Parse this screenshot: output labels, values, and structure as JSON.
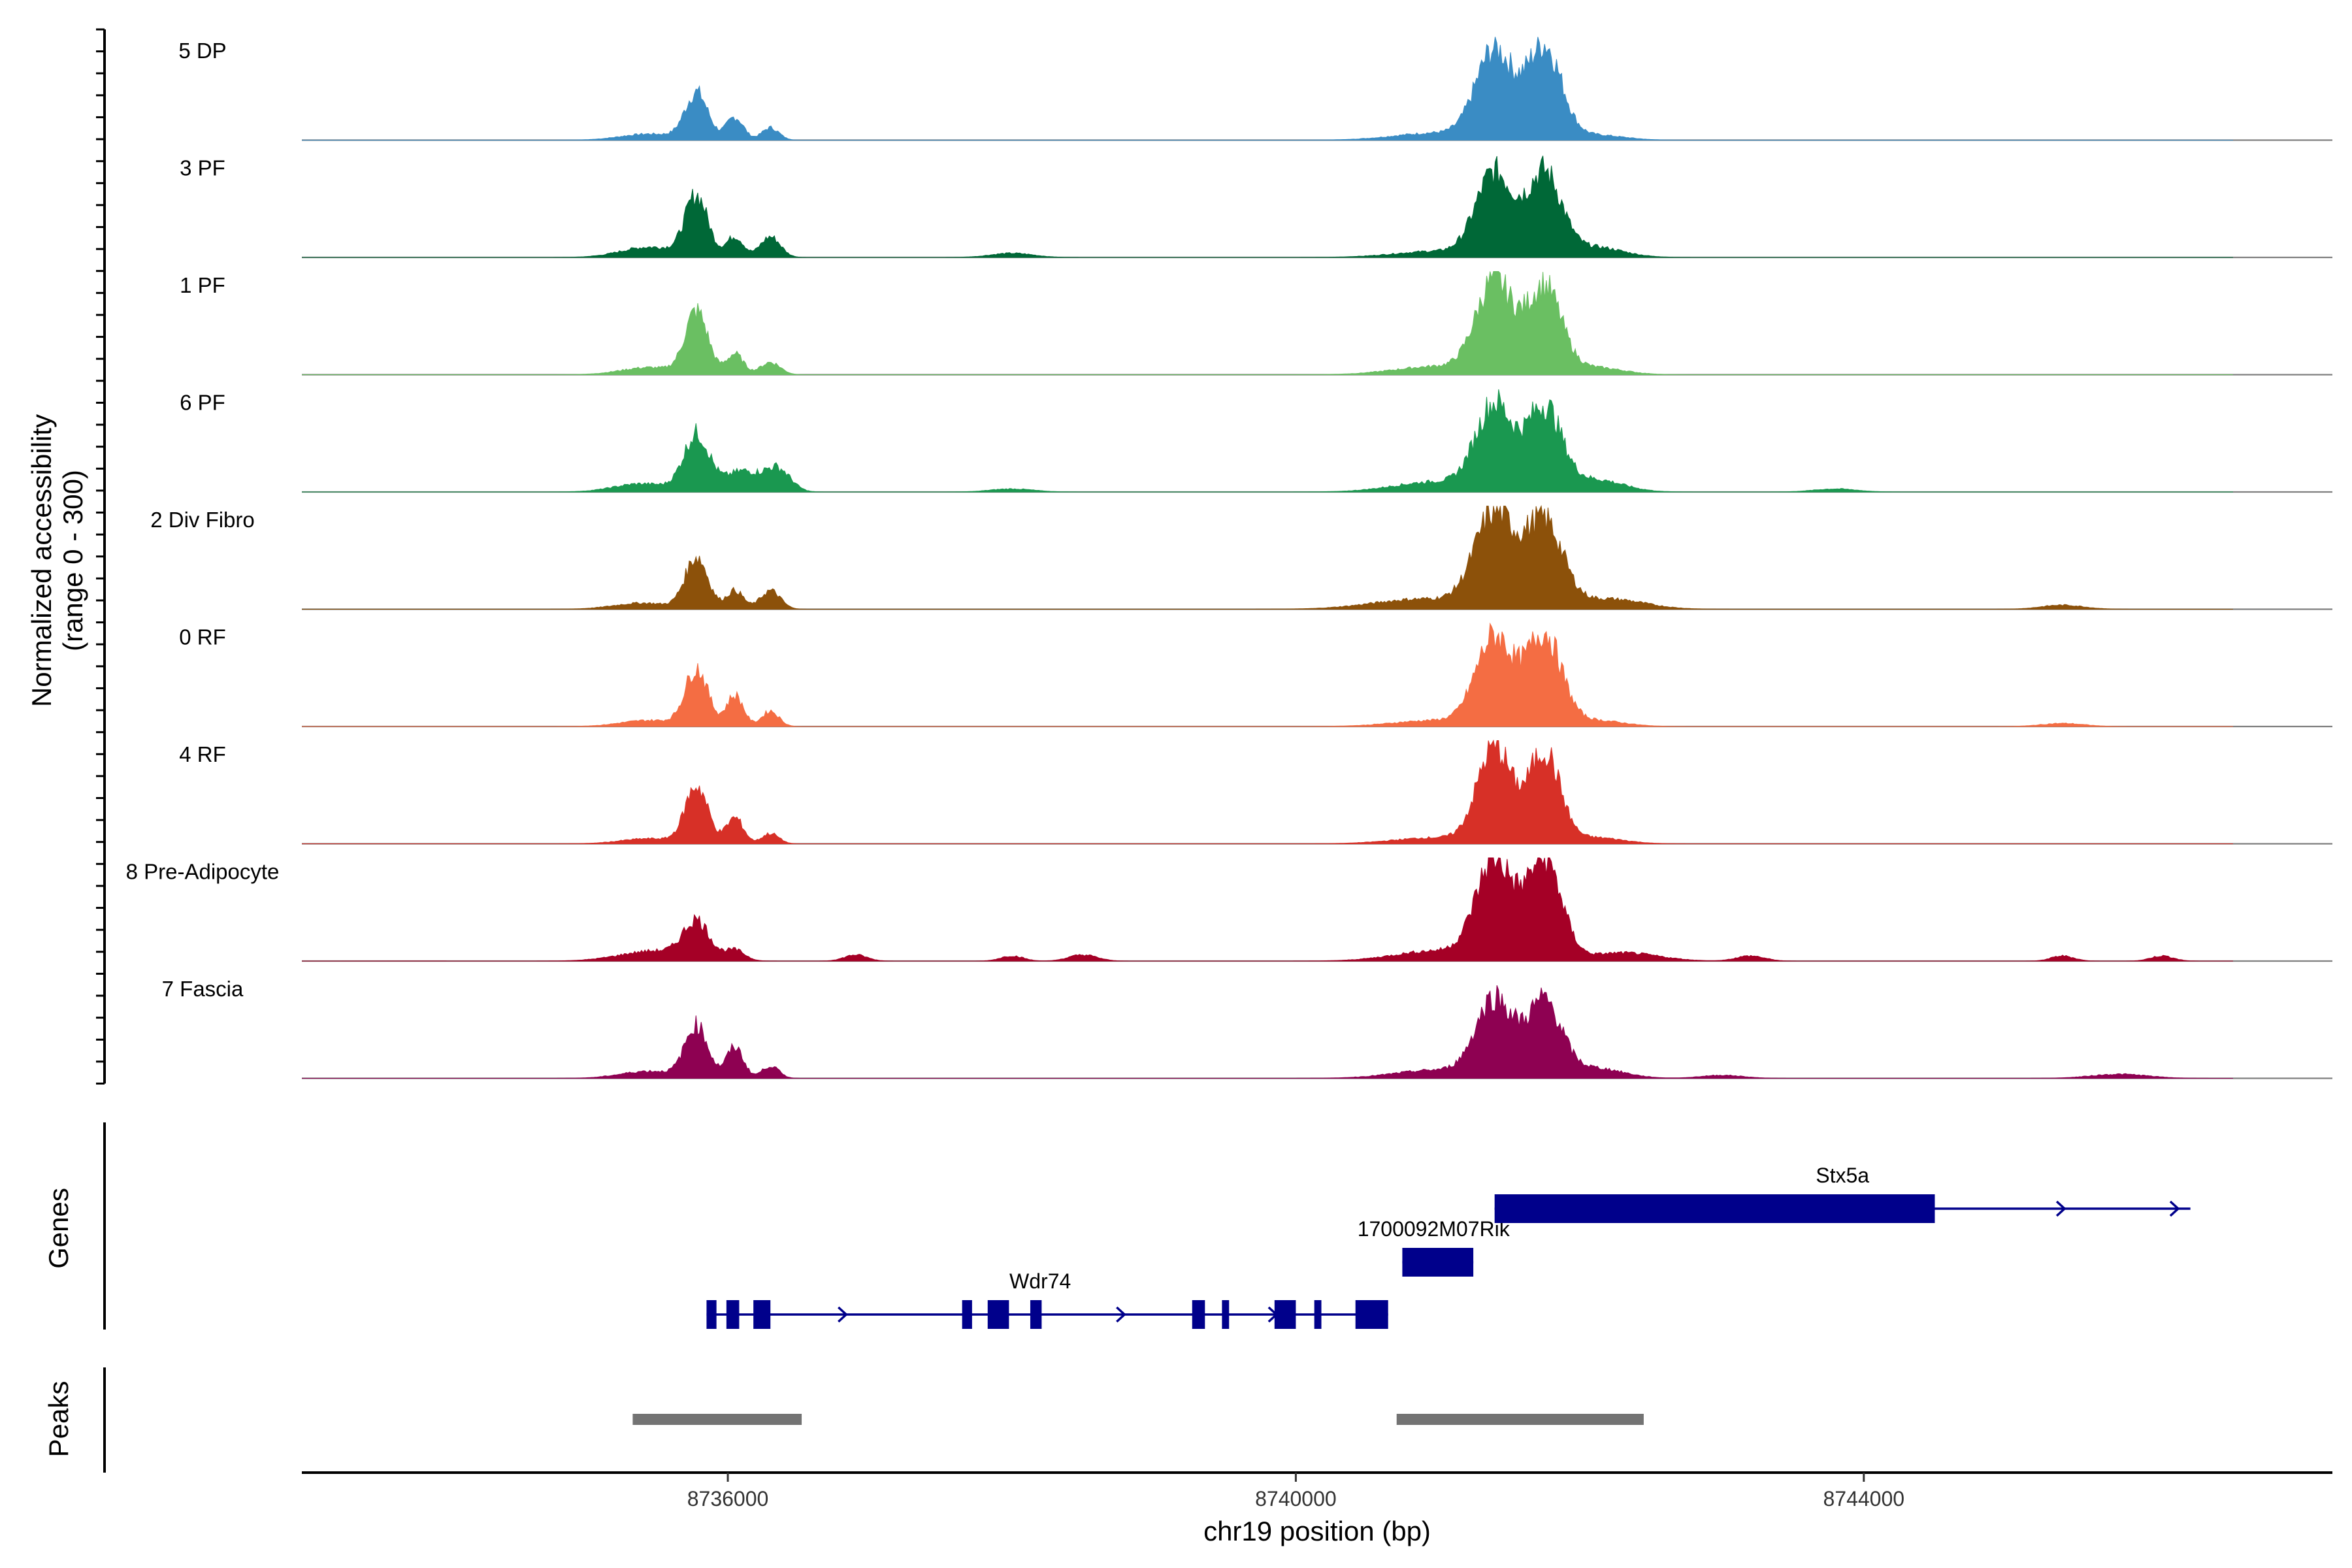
{
  "chart_data": {
    "type": "coverage-track",
    "xlabel": "chr19 position (bp)",
    "x_range": [
      8733000,
      8747300
    ],
    "x_ticks": [
      8736000,
      8740000,
      8744000
    ],
    "x_tick_labels": [
      "8736000",
      "8740000",
      "8744000"
    ],
    "coverage": {
      "ylabel_line1": "Normalized accessibility",
      "ylabel_line2": "(range 0 - 300)",
      "y_range": [
        0,
        300
      ],
      "tracks": [
        {
          "name": "5 DP",
          "color": "#3A8CC4",
          "peaks": [
            [
              8735780,
              0.45,
              80
            ],
            [
              8736050,
              0.22,
              60
            ],
            [
              8736300,
              0.12,
              60
            ],
            [
              8735450,
              0.06,
              200
            ],
            [
              8741400,
              0.85,
              130
            ],
            [
              8741750,
              0.9,
              120
            ],
            [
              8741000,
              0.07,
              300
            ],
            [
              8742100,
              0.05,
              200
            ]
          ]
        },
        {
          "name": "3 PF",
          "color": "#006837",
          "peaks": [
            [
              8735780,
              0.58,
              80
            ],
            [
              8736050,
              0.2,
              60
            ],
            [
              8736300,
              0.2,
              70
            ],
            [
              8735450,
              0.1,
              200
            ],
            [
              8741400,
              0.8,
              130
            ],
            [
              8741750,
              0.8,
              120
            ],
            [
              8741000,
              0.06,
              300
            ],
            [
              8742100,
              0.1,
              200
            ],
            [
              8738000,
              0.04,
              150
            ]
          ]
        },
        {
          "name": "1 PF",
          "color": "#6ABF62",
          "peaks": [
            [
              8735780,
              0.6,
              80
            ],
            [
              8736050,
              0.2,
              60
            ],
            [
              8736300,
              0.12,
              70
            ],
            [
              8735450,
              0.07,
              200
            ],
            [
              8741400,
              0.88,
              130
            ],
            [
              8741750,
              0.83,
              120
            ],
            [
              8741000,
              0.08,
              300
            ],
            [
              8742100,
              0.07,
              200
            ]
          ]
        },
        {
          "name": "6 PF",
          "color": "#1A9850",
          "peaks": [
            [
              8735780,
              0.55,
              90
            ],
            [
              8736100,
              0.2,
              120
            ],
            [
              8736350,
              0.22,
              90
            ],
            [
              8735400,
              0.08,
              200
            ],
            [
              8741400,
              0.82,
              130
            ],
            [
              8741750,
              0.8,
              120
            ],
            [
              8741000,
              0.1,
              300
            ],
            [
              8742100,
              0.12,
              200
            ],
            [
              8738000,
              0.03,
              150
            ],
            [
              8743800,
              0.03,
              150
            ]
          ]
        },
        {
          "name": "2 Div Fibro",
          "color": "#8C510A",
          "peaks": [
            [
              8735780,
              0.5,
              80
            ],
            [
              8736050,
              0.18,
              60
            ],
            [
              8736300,
              0.18,
              70
            ],
            [
              8735400,
              0.06,
              200
            ],
            [
              8741400,
              0.9,
              140
            ],
            [
              8741750,
              0.82,
              130
            ],
            [
              8740900,
              0.1,
              350
            ],
            [
              8742200,
              0.1,
              250
            ],
            [
              8745400,
              0.04,
              150
            ]
          ]
        },
        {
          "name": "0 RF",
          "color": "#F46D43",
          "peaks": [
            [
              8735780,
              0.55,
              80
            ],
            [
              8736050,
              0.3,
              60
            ],
            [
              8736300,
              0.15,
              60
            ],
            [
              8735450,
              0.06,
              200
            ],
            [
              8741400,
              0.85,
              130
            ],
            [
              8741750,
              0.88,
              120
            ],
            [
              8741000,
              0.06,
              300
            ],
            [
              8742100,
              0.06,
              200
            ],
            [
              8745400,
              0.03,
              150
            ]
          ]
        },
        {
          "name": "4 RF",
          "color": "#D73027",
          "peaks": [
            [
              8735780,
              0.55,
              80
            ],
            [
              8736050,
              0.25,
              60
            ],
            [
              8736300,
              0.1,
              60
            ],
            [
              8735450,
              0.05,
              200
            ],
            [
              8741400,
              0.92,
              120
            ],
            [
              8741750,
              0.88,
              110
            ],
            [
              8741000,
              0.06,
              300
            ],
            [
              8742100,
              0.06,
              200
            ]
          ]
        },
        {
          "name": "8 Pre-Adipocyte",
          "color": "#A50026",
          "peaks": [
            [
              8733700,
              0.05,
              100
            ],
            [
              8735780,
              0.35,
              90
            ],
            [
              8736050,
              0.1,
              70
            ],
            [
              8735500,
              0.1,
              250
            ],
            [
              8741400,
              0.95,
              130
            ],
            [
              8741750,
              0.98,
              120
            ],
            [
              8741000,
              0.1,
              300
            ],
            [
              8742300,
              0.08,
              250
            ],
            [
              8736900,
              0.06,
              80
            ],
            [
              8738000,
              0.05,
              80
            ],
            [
              8738500,
              0.06,
              100
            ],
            [
              8743200,
              0.05,
              100
            ],
            [
              8745400,
              0.05,
              80
            ],
            [
              8746100,
              0.05,
              80
            ]
          ]
        },
        {
          "name": "7 Fascia",
          "color": "#8E0152",
          "peaks": [
            [
              8735780,
              0.5,
              80
            ],
            [
              8736050,
              0.3,
              60
            ],
            [
              8736300,
              0.12,
              60
            ],
            [
              8735450,
              0.07,
              200
            ],
            [
              8741400,
              0.75,
              130
            ],
            [
              8741750,
              0.72,
              120
            ],
            [
              8741000,
              0.08,
              300
            ],
            [
              8742100,
              0.1,
              200
            ],
            [
              8745800,
              0.04,
              200
            ],
            [
              8743000,
              0.03,
              150
            ]
          ]
        }
      ]
    },
    "genes": {
      "ylabel": "Genes",
      "color": "#00008B",
      "items": [
        {
          "name": "Wdr74",
          "label_pos": 8738200,
          "strand": "+",
          "start": 8735850,
          "end": 8740650,
          "exons": [
            [
              8735850,
              8735920
            ],
            [
              8735990,
              8736080
            ],
            [
              8736180,
              8736300
            ],
            [
              8737650,
              8737720
            ],
            [
              8737830,
              8737980
            ],
            [
              8738130,
              8738210
            ],
            [
              8739270,
              8739360
            ],
            [
              8739480,
              8739530
            ],
            [
              8739850,
              8740000
            ],
            [
              8740130,
              8740180
            ],
            [
              8740420,
              8740650
            ]
          ],
          "arrows": [
            8736820,
            8738780,
            8739850
          ]
        },
        {
          "name": "1700092M07Rik",
          "label_pos": 8740970,
          "strand": "+",
          "start": 8740750,
          "end": 8741250,
          "exons": [
            [
              8740750,
              8741250
            ]
          ],
          "arrows": [
            8741150
          ]
        },
        {
          "name": "Stx5a",
          "label_pos": 8743850,
          "strand": "+",
          "start": 8741400,
          "end": 8746300,
          "exons": [
            [
              8741400,
              8744500
            ]
          ],
          "arrows": [
            8741450,
            8745400,
            8746200
          ]
        }
      ]
    },
    "peaks": {
      "ylabel": "Peaks",
      "color": "#737373",
      "regions": [
        [
          8735330,
          8736520
        ],
        [
          8740710,
          8742450
        ]
      ]
    }
  }
}
